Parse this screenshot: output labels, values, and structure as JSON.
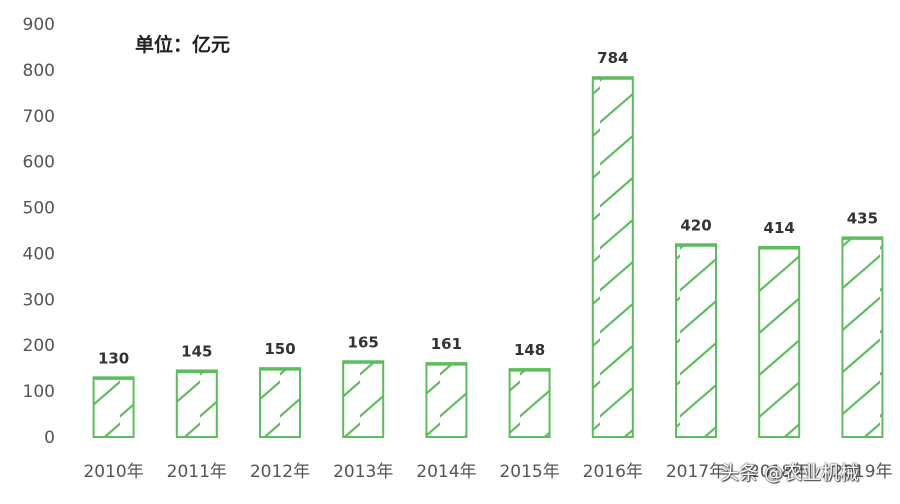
{
  "chart_data": {
    "type": "bar",
    "unit_label": "单位：亿元",
    "categories": [
      "2010年",
      "2011年",
      "2012年",
      "2013年",
      "2014年",
      "2015年",
      "2016年",
      "2017年",
      "2018年",
      "2019年"
    ],
    "values": [
      130,
      145,
      150,
      165,
      161,
      148,
      784,
      420,
      414,
      435
    ],
    "data_labels": [
      "130",
      "145",
      "150",
      "165",
      "161",
      "148",
      "784",
      "420",
      "414",
      "435"
    ],
    "y_ticks": [
      0,
      100,
      200,
      300,
      400,
      500,
      600,
      700,
      800,
      900
    ],
    "ylim": [
      0,
      900
    ],
    "grid": false,
    "legend": "none",
    "colors": {
      "bar_stroke": "#5cbd5c",
      "hatch": "#5cbd5c",
      "tick_text": "#555555",
      "label_text": "#333333"
    }
  },
  "watermark": "头条 @农业机械"
}
